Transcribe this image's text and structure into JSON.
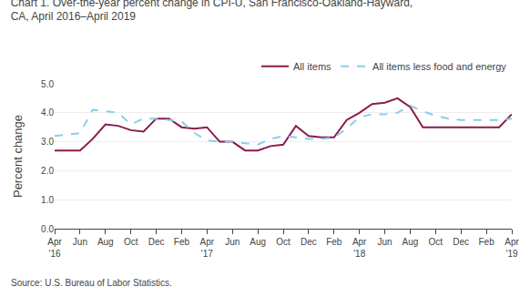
{
  "chart_data": {
    "type": "line",
    "title": "Chart 1. Over-the-year percent change in CPI-U, San Francisco-Oakland-Hayward,\nCA, April 2016–April 2019",
    "y_label": "Percent change",
    "annotations": [
      "Source: U.S. Bureau of Labor Statistics."
    ],
    "categories": [
      "Apr\n'16",
      null,
      "Jun",
      null,
      "Aug",
      null,
      "Oct",
      null,
      "Dec",
      null,
      "Feb",
      null,
      "Apr\n'17",
      null,
      "Jun",
      null,
      "Aug",
      null,
      "Oct",
      null,
      "Dec",
      null,
      "Feb",
      null,
      "Apr\n'18",
      null,
      "Jun",
      null,
      "Aug",
      null,
      "Oct",
      null,
      "Dec",
      null,
      "Feb",
      null,
      "Apr\n'19"
    ],
    "series": [
      {
        "name": "All items",
        "color": "#8B1A4A",
        "line_style": "solid",
        "values": [
          2.7,
          2.7,
          2.7,
          3.1,
          3.6,
          3.55,
          3.4,
          3.35,
          3.8,
          3.8,
          3.5,
          3.45,
          3.5,
          3.0,
          3.0,
          2.7,
          2.7,
          2.85,
          2.9,
          3.55,
          3.2,
          3.15,
          3.15,
          3.75,
          4.0,
          4.3,
          4.35,
          4.5,
          4.2,
          3.5,
          3.5,
          3.5,
          3.5,
          3.5,
          3.5,
          3.5,
          3.95
        ]
      },
      {
        "name": "All items less food and energy",
        "color": "#87CEEB",
        "line_style": "dashed",
        "values": [
          3.2,
          3.25,
          3.3,
          4.1,
          4.05,
          4.0,
          3.6,
          3.8,
          3.8,
          3.75,
          3.7,
          3.3,
          3.05,
          3.0,
          3.0,
          2.95,
          2.9,
          3.1,
          3.2,
          3.15,
          3.1,
          3.1,
          3.15,
          3.45,
          3.85,
          3.95,
          3.95,
          4.0,
          4.25,
          4.05,
          3.9,
          3.8,
          3.75,
          3.75,
          3.75,
          3.75,
          3.8
        ]
      }
    ],
    "ylim": [
      0.0,
      5.0
    ],
    "yticks": [
      {
        "value": 0,
        "label": "0.0"
      },
      {
        "value": 1,
        "label": "1.0"
      },
      {
        "value": 2,
        "label": "2.0"
      },
      {
        "value": 3,
        "label": "3.0"
      },
      {
        "value": 4,
        "label": "4.0"
      },
      {
        "value": 5,
        "label": "5.0"
      }
    ],
    "grid": true,
    "legend": "upper right"
  }
}
